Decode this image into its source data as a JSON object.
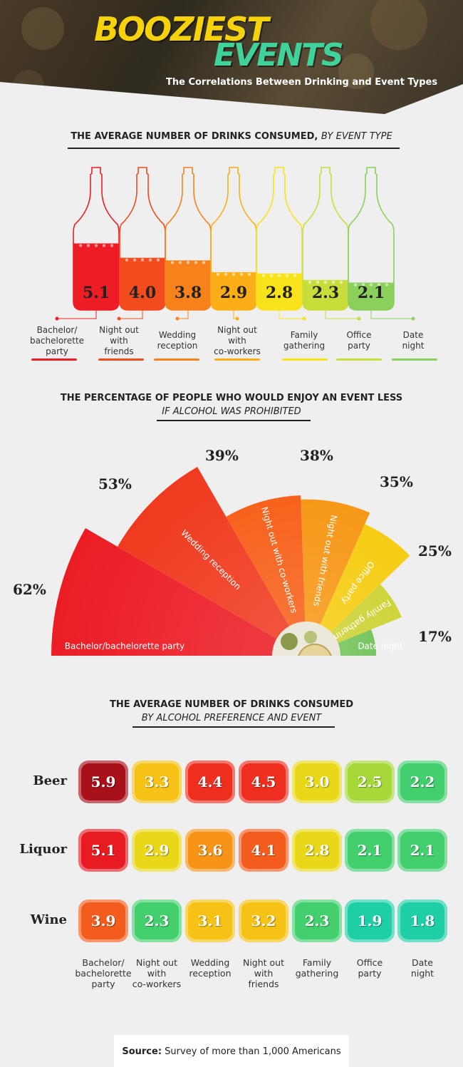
{
  "header": {
    "title_line1": "BOOZIEST",
    "title_line2": "EVENTS",
    "subtitle": "The Correlations Between Drinking and Event Types",
    "title1_color": "#f5d20a",
    "title2_color": "#3fd39b"
  },
  "section1": {
    "title_bold": "THE AVERAGE NUMBER OF DRINKS CONSUMED,",
    "title_italic": "BY EVENT TYPE"
  },
  "section2": {
    "title_line1": "THE PERCENTAGE OF PEOPLE WHO WOULD ENJOY AN EVENT LESS",
    "title_line2": "IF ALCOHOL WAS PROHIBITED"
  },
  "section3": {
    "title_line1": "THE AVERAGE NUMBER OF DRINKS CONSUMED",
    "title_line2": "BY ALCOHOL PREFERENCE AND EVENT"
  },
  "source": {
    "label": "Source:",
    "text": "Survey of more than 1,000 Americans"
  },
  "chart_data": [
    {
      "type": "bar",
      "title": "THE AVERAGE NUMBER OF DRINKS CONSUMED, BY EVENT TYPE",
      "categories": [
        "Bachelor/ bachelorette party",
        "Night out with friends",
        "Wedding reception",
        "Night out with co-workers",
        "Family gathering",
        "Office party",
        "Date night"
      ],
      "values": [
        5.1,
        4.0,
        3.8,
        2.9,
        2.8,
        2.3,
        2.1
      ],
      "value_labels": [
        "5.1",
        "4.0",
        "3.8",
        "2.9",
        "2.8",
        "2.3",
        "2.1"
      ],
      "colors": [
        "#ee1c25",
        "#f24b1e",
        "#f7821c",
        "#fbae17",
        "#f8e31a",
        "#c8dc3a",
        "#8bd05a"
      ]
    },
    {
      "type": "pie",
      "title": "THE PERCENTAGE OF PEOPLE WHO WOULD ENJOY AN EVENT LESS IF ALCOHOL WAS PROHIBITED",
      "categories": [
        "Bachelor/bachelorette party",
        "Wedding reception",
        "Night out with co-workers",
        "Night out with friends",
        "Office party",
        "Family gathering",
        "Date night"
      ],
      "values": [
        62,
        53,
        39,
        38,
        35,
        25,
        17
      ],
      "value_labels": [
        "62%",
        "53%",
        "39%",
        "38%",
        "35%",
        "25%",
        "17%"
      ],
      "colors": [
        "#ec1c24",
        "#f03a1f",
        "#f7621c",
        "#f79818",
        "#f6cd14",
        "#cfd43a",
        "#79c662"
      ]
    },
    {
      "type": "heatmap",
      "title": "THE AVERAGE NUMBER OF DRINKS CONSUMED BY ALCOHOL PREFERENCE AND EVENT",
      "rows": [
        "Beer",
        "Liquor",
        "Wine"
      ],
      "columns": [
        "Bachelor/ bachelorette party",
        "Night out with co-workers",
        "Wedding reception",
        "Night out with friends",
        "Family gathering",
        "Office party",
        "Date night"
      ],
      "values": [
        [
          5.9,
          3.3,
          4.4,
          4.5,
          3.0,
          2.5,
          2.2
        ],
        [
          5.1,
          2.9,
          3.6,
          4.1,
          2.8,
          2.1,
          2.1
        ],
        [
          3.9,
          2.3,
          3.1,
          3.2,
          2.3,
          1.9,
          1.8
        ]
      ],
      "value_labels": [
        [
          "5.9",
          "3.3",
          "4.4",
          "4.5",
          "3.0",
          "2.5",
          "2.2"
        ],
        [
          "5.1",
          "2.9",
          "3.6",
          "4.1",
          "2.8",
          "2.1",
          "2.1"
        ],
        [
          "3.9",
          "2.3",
          "3.1",
          "3.2",
          "2.3",
          "1.9",
          "1.8"
        ]
      ]
    }
  ]
}
